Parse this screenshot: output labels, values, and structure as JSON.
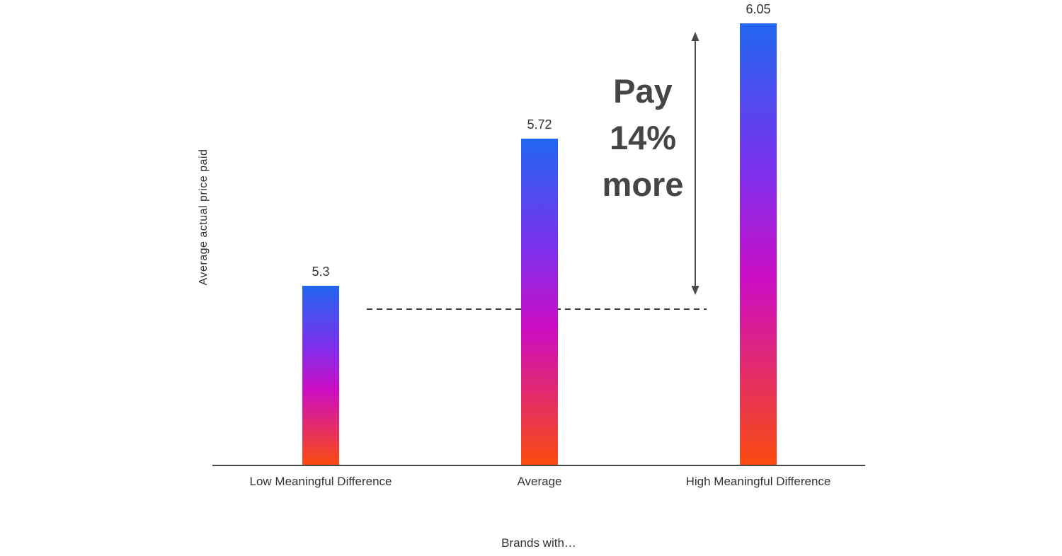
{
  "chart_data": {
    "type": "bar",
    "categories": [
      "Low Meaningful Difference",
      "Average",
      "High Meaningful Difference"
    ],
    "values": [
      5.3,
      5.72,
      6.05
    ],
    "value_labels": [
      "5.3",
      "5.72",
      "6.05"
    ],
    "title": "",
    "xlabel": "Brands with…",
    "ylabel": "Average actual price paid",
    "ylim": [
      4.79,
      6.05
    ],
    "grid": false,
    "legend": "none",
    "annotation": "Pay\n14%\nmore",
    "bar_gradient": [
      "#2166f1 0%",
      "#7b31ee 33%",
      "#cc0dc4 58%",
      "#f94b0f 100%"
    ],
    "colors": {
      "axis": "#4a4a4a",
      "text": "#333333",
      "annotation_text": "#454545",
      "dashed_line": "#444444",
      "arrow": "#4a4a4a"
    }
  }
}
